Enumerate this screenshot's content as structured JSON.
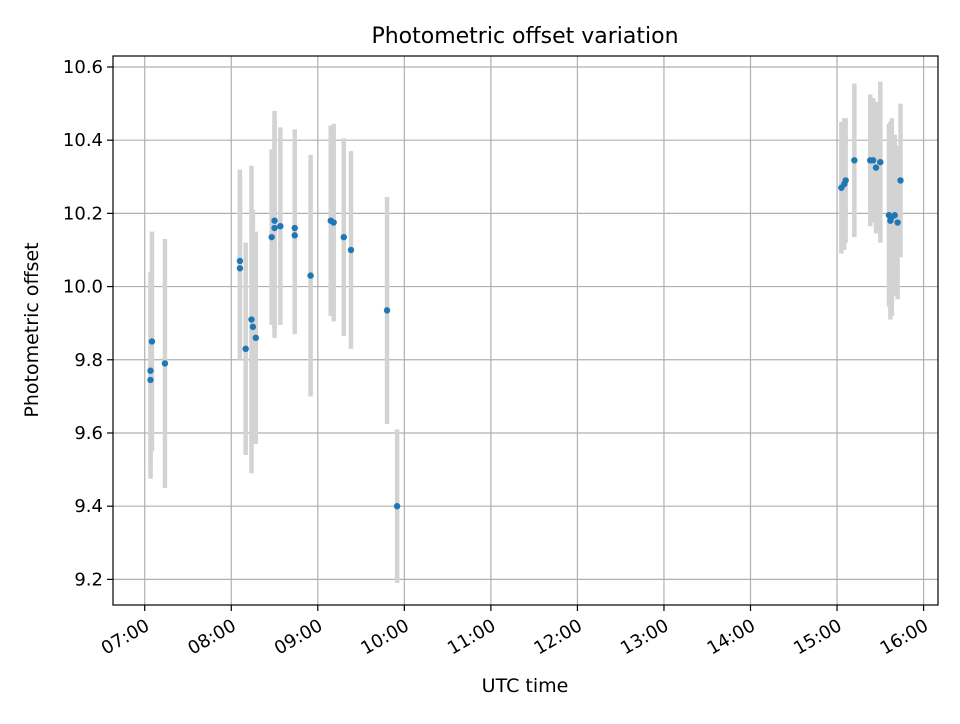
{
  "chart_data": {
    "type": "scatter",
    "title": "Photometric offset variation",
    "xlabel": "UTC time",
    "ylabel": "Photometric offset",
    "xlim": [
      "06:38",
      "16:10"
    ],
    "ylim": [
      9.13,
      10.63
    ],
    "x_ticks": [
      "07:00",
      "08:00",
      "09:00",
      "10:00",
      "11:00",
      "12:00",
      "13:00",
      "14:00",
      "15:00",
      "16:00"
    ],
    "y_ticks": [
      "9.2",
      "9.4",
      "9.6",
      "9.8",
      "10.0",
      "10.2",
      "10.4",
      "10.6"
    ],
    "grid": true,
    "marker_color": "#1f77b4",
    "errorbar_color": "#d3d3d3",
    "points": [
      {
        "t": "07:04",
        "y": 9.745,
        "err": 0.27
      },
      {
        "t": "07:04",
        "y": 9.77,
        "err": 0.27
      },
      {
        "t": "07:05",
        "y": 9.85,
        "err": 0.3
      },
      {
        "t": "07:14",
        "y": 9.79,
        "err": 0.34
      },
      {
        "t": "08:06",
        "y": 10.07,
        "err": 0.25
      },
      {
        "t": "08:06",
        "y": 10.05,
        "err": 0.25
      },
      {
        "t": "08:10",
        "y": 9.83,
        "err": 0.29
      },
      {
        "t": "08:14",
        "y": 9.91,
        "err": 0.42
      },
      {
        "t": "08:15",
        "y": 9.89,
        "err": 0.32
      },
      {
        "t": "08:17",
        "y": 9.86,
        "err": 0.29
      },
      {
        "t": "08:28",
        "y": 10.135,
        "err": 0.24
      },
      {
        "t": "08:30",
        "y": 10.18,
        "err": 0.3
      },
      {
        "t": "08:30",
        "y": 10.16,
        "err": 0.3
      },
      {
        "t": "08:34",
        "y": 10.165,
        "err": 0.27
      },
      {
        "t": "08:44",
        "y": 10.16,
        "err": 0.27
      },
      {
        "t": "08:44",
        "y": 10.14,
        "err": 0.27
      },
      {
        "t": "08:55",
        "y": 10.03,
        "err": 0.33
      },
      {
        "t": "09:09",
        "y": 10.18,
        "err": 0.26
      },
      {
        "t": "09:11",
        "y": 10.175,
        "err": 0.27
      },
      {
        "t": "09:18",
        "y": 10.135,
        "err": 0.27
      },
      {
        "t": "09:23",
        "y": 10.1,
        "err": 0.27
      },
      {
        "t": "09:48",
        "y": 9.935,
        "err": 0.31
      },
      {
        "t": "09:55",
        "y": 9.4,
        "err": 0.21
      },
      {
        "t": "15:03",
        "y": 10.27,
        "err": 0.18
      },
      {
        "t": "15:05",
        "y": 10.28,
        "err": 0.18
      },
      {
        "t": "15:06",
        "y": 10.29,
        "err": 0.17
      },
      {
        "t": "15:12",
        "y": 10.345,
        "err": 0.21
      },
      {
        "t": "15:23",
        "y": 10.345,
        "err": 0.18
      },
      {
        "t": "15:25",
        "y": 10.345,
        "err": 0.17
      },
      {
        "t": "15:27",
        "y": 10.325,
        "err": 0.18
      },
      {
        "t": "15:30",
        "y": 10.34,
        "err": 0.22
      },
      {
        "t": "15:36",
        "y": 10.195,
        "err": 0.25
      },
      {
        "t": "15:37",
        "y": 10.18,
        "err": 0.27
      },
      {
        "t": "15:38",
        "y": 10.19,
        "err": 0.27
      },
      {
        "t": "15:40",
        "y": 10.195,
        "err": 0.22
      },
      {
        "t": "15:42",
        "y": 10.175,
        "err": 0.21
      },
      {
        "t": "15:44",
        "y": 10.29,
        "err": 0.21
      }
    ]
  }
}
